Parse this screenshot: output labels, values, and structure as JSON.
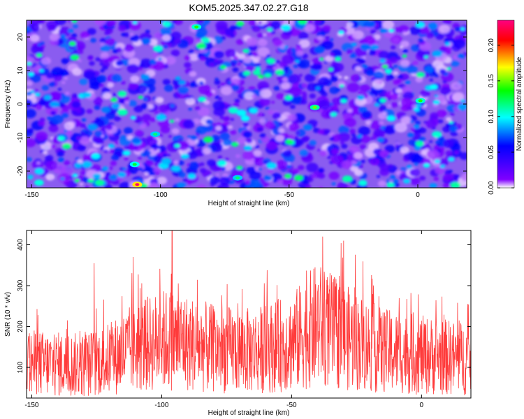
{
  "title": "KOM5.2025.347.02.27.G18",
  "chart_data": [
    {
      "type": "heatmap",
      "xlabel": "Height of straight line (km)",
      "ylabel": "Frequency (Hz)",
      "xlim": [
        -152,
        19
      ],
      "ylim": [
        -25,
        25
      ],
      "xticks": [
        -150,
        -100,
        -50,
        0
      ],
      "yticks": [
        -20,
        -10,
        0,
        10,
        20
      ],
      "xtick_labels": [
        "-150",
        "-100",
        "-50",
        "0"
      ],
      "ytick_labels": [
        "-20",
        "-10",
        "0",
        "10",
        "20"
      ],
      "colorbar": {
        "label": "Normalized spectral amplitude",
        "range": [
          0,
          0.235
        ],
        "ticks": [
          0,
          0.05,
          0.1,
          0.15,
          0.2
        ],
        "tick_labels": [
          "0.00",
          "0.05",
          "0.10",
          "0.15",
          "0.20"
        ],
        "colors": [
          "#ffffff",
          "#8000ff",
          "#0000ff",
          "#00ffff",
          "#00ff00",
          "#ffff00",
          "#ff0000",
          "#ff0080"
        ]
      },
      "peaks": [
        {
          "x": -109,
          "y": -24,
          "value": 0.23
        },
        {
          "x": -86,
          "y": 23,
          "value": 0.14
        },
        {
          "x": -40,
          "y": -1,
          "value": 0.15
        },
        {
          "x": -110,
          "y": -18,
          "value": 0.13
        },
        {
          "x": 1,
          "y": 1,
          "value": 0.14
        },
        {
          "x": -102,
          "y": -9,
          "value": 0.12
        },
        {
          "x": -70,
          "y": -22,
          "value": 0.12
        }
      ]
    },
    {
      "type": "line",
      "xlabel": "Height of straight line (km)",
      "ylabel": "SNR (10 * v/v)",
      "xlim": [
        -152,
        19
      ],
      "ylim": [
        25,
        435
      ],
      "xticks": [
        -150,
        -100,
        -50,
        0
      ],
      "yticks": [
        100,
        200,
        300,
        400
      ],
      "xtick_labels": [
        "-150",
        "-100",
        "-50",
        "0"
      ],
      "ytick_labels": [
        "100",
        "200",
        "300",
        "400"
      ],
      "grid": false,
      "color": "#ff3b3b",
      "envelope": [
        {
          "x": -152,
          "y": 110
        },
        {
          "x": -130,
          "y": 105
        },
        {
          "x": -120,
          "y": 120
        },
        {
          "x": -110,
          "y": 150
        },
        {
          "x": -97,
          "y": 170
        },
        {
          "x": -80,
          "y": 145
        },
        {
          "x": -65,
          "y": 140
        },
        {
          "x": -50,
          "y": 160
        },
        {
          "x": -40,
          "y": 205
        },
        {
          "x": -30,
          "y": 175
        },
        {
          "x": -15,
          "y": 140
        },
        {
          "x": 0,
          "y": 130
        },
        {
          "x": 19,
          "y": 120
        }
      ],
      "peaks": [
        {
          "x": -96,
          "y": 435
        },
        {
          "x": -38,
          "y": 420
        },
        {
          "x": -111,
          "y": 370
        },
        {
          "x": -30,
          "y": 410
        },
        {
          "x": -126,
          "y": 355
        }
      ]
    }
  ]
}
